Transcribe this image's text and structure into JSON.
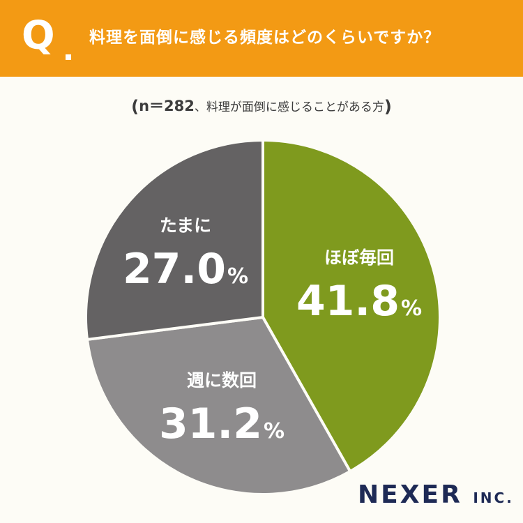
{
  "header": {
    "q_mark": "Q",
    "question": "料理を面倒に感じる頻度はどのくらいですか？",
    "bg_color": "#f39a14"
  },
  "subtitle": {
    "open": "(",
    "n_label": "n＝282",
    "text": "、料理が面倒に感じることがある方",
    "close": ")"
  },
  "chart_data": {
    "type": "pie",
    "unit": "%",
    "slices": [
      {
        "label": "ほぼ毎回",
        "value": 41.8,
        "value_text": "41.8",
        "color": "#7f9a1e"
      },
      {
        "label": "週に数回",
        "value": 31.2,
        "value_text": "31.2",
        "color": "#8e8c8d"
      },
      {
        "label": "たまに",
        "value": 27.0,
        "value_text": "27.0",
        "color": "#646263"
      }
    ]
  },
  "logo": {
    "name": "NEXER",
    "suffix": "INC."
  }
}
